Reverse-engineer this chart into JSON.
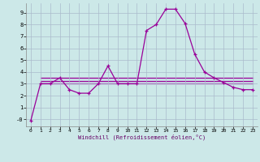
{
  "xlabel": "Windchill (Refroidissement éolien,°C)",
  "x_values": [
    0,
    1,
    2,
    3,
    4,
    5,
    6,
    7,
    8,
    9,
    10,
    11,
    12,
    13,
    14,
    15,
    16,
    17,
    18,
    19,
    20,
    21,
    22,
    23
  ],
  "line1": [
    -0.1,
    3.0,
    3.0,
    3.5,
    2.5,
    2.2,
    2.2,
    3.0,
    4.5,
    3.0,
    3.0,
    3.0,
    7.5,
    8.0,
    9.3,
    9.3,
    8.1,
    5.5,
    4.0,
    3.5,
    3.1,
    2.7,
    2.5,
    2.5
  ],
  "line2_x": [
    1,
    23
  ],
  "line2_y": [
    3.5,
    3.5
  ],
  "line3_x": [
    1,
    23
  ],
  "line3_y": [
    3.0,
    3.0
  ],
  "line4_x": [
    1,
    23
  ],
  "line4_y": [
    3.2,
    3.2
  ],
  "line_color": "#990099",
  "bg_color": "#cce8e8",
  "grid_color": "#aabbcc",
  "ylim": [
    -0.6,
    9.8
  ],
  "xlim": [
    -0.5,
    23.5
  ],
  "yticks": [
    0,
    1,
    2,
    3,
    4,
    5,
    6,
    7,
    8,
    9
  ],
  "ytick_labels": [
    "-0",
    "1",
    "2",
    "3",
    "4",
    "5",
    "6",
    "7",
    "8",
    "9"
  ],
  "xticks": [
    0,
    1,
    2,
    3,
    4,
    5,
    6,
    7,
    8,
    9,
    10,
    11,
    12,
    13,
    14,
    15,
    16,
    17,
    18,
    19,
    20,
    21,
    22,
    23
  ]
}
